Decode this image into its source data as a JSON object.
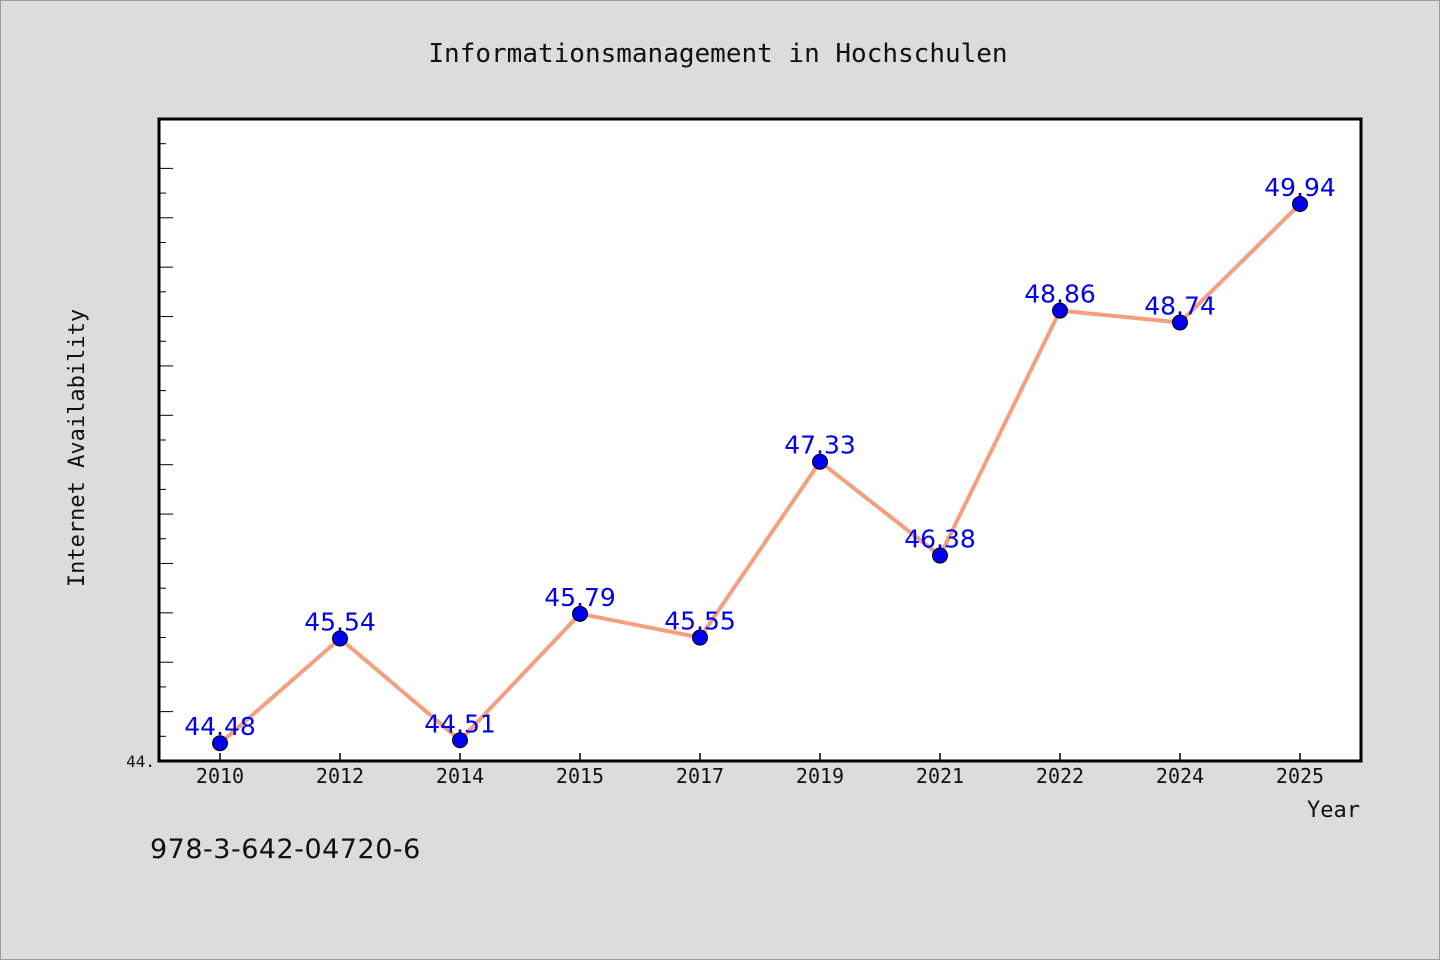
{
  "chart_data": {
    "type": "line",
    "title": "Informationsmanagement in Hochschulen",
    "xlabel": "Year",
    "ylabel": "Internet Availability",
    "categories": [
      "2010",
      "2012",
      "2014",
      "2015",
      "2017",
      "2019",
      "2021",
      "2022",
      "2024",
      "2025"
    ],
    "series": [
      {
        "values": [
          44.48,
          45.54,
          44.51,
          45.79,
          45.55,
          47.33,
          46.38,
          48.86,
          48.74,
          49.94
        ],
        "labels": [
          "44.48",
          "45.54",
          "44.51",
          "45.79",
          "45.55",
          "47.33",
          "46.38",
          "48.86",
          "48.74",
          "49.94"
        ]
      }
    ],
    "ylim": [
      44.3,
      50.8
    ],
    "y_tick_label": "44.",
    "grid": false,
    "legend": "none",
    "colors": {
      "line": "#f4a080",
      "marker": "#0000ee",
      "data_label": "#0000ee",
      "plot_background": "#ffffff",
      "page_background": "#dcdcdc"
    }
  },
  "footer": {
    "isbn": "978-3-642-04720-6"
  }
}
